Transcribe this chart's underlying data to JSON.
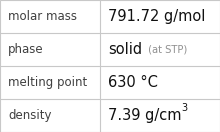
{
  "rows": [
    {
      "label": "molar mass",
      "value": "791.72 g/mol",
      "annotation": null,
      "superscript": null
    },
    {
      "label": "phase",
      "value": "solid",
      "annotation": " (at STP)",
      "superscript": null
    },
    {
      "label": "melting point",
      "value": "630 °C",
      "annotation": null,
      "superscript": null
    },
    {
      "label": "density",
      "value": "7.39 g/cm",
      "annotation": null,
      "superscript": "3"
    }
  ],
  "background_color": "#ffffff",
  "border_color": "#c8c8c8",
  "label_color": "#404040",
  "value_color": "#111111",
  "annotation_color": "#909090",
  "divider_color": "#c8c8c8",
  "col_split": 0.455,
  "label_fontsize": 8.5,
  "value_fontsize": 10.5,
  "annotation_fontsize": 7.2,
  "superscript_fontsize": 7.0,
  "label_font": "DejaVu Sans",
  "value_font": "DejaVu Sans"
}
